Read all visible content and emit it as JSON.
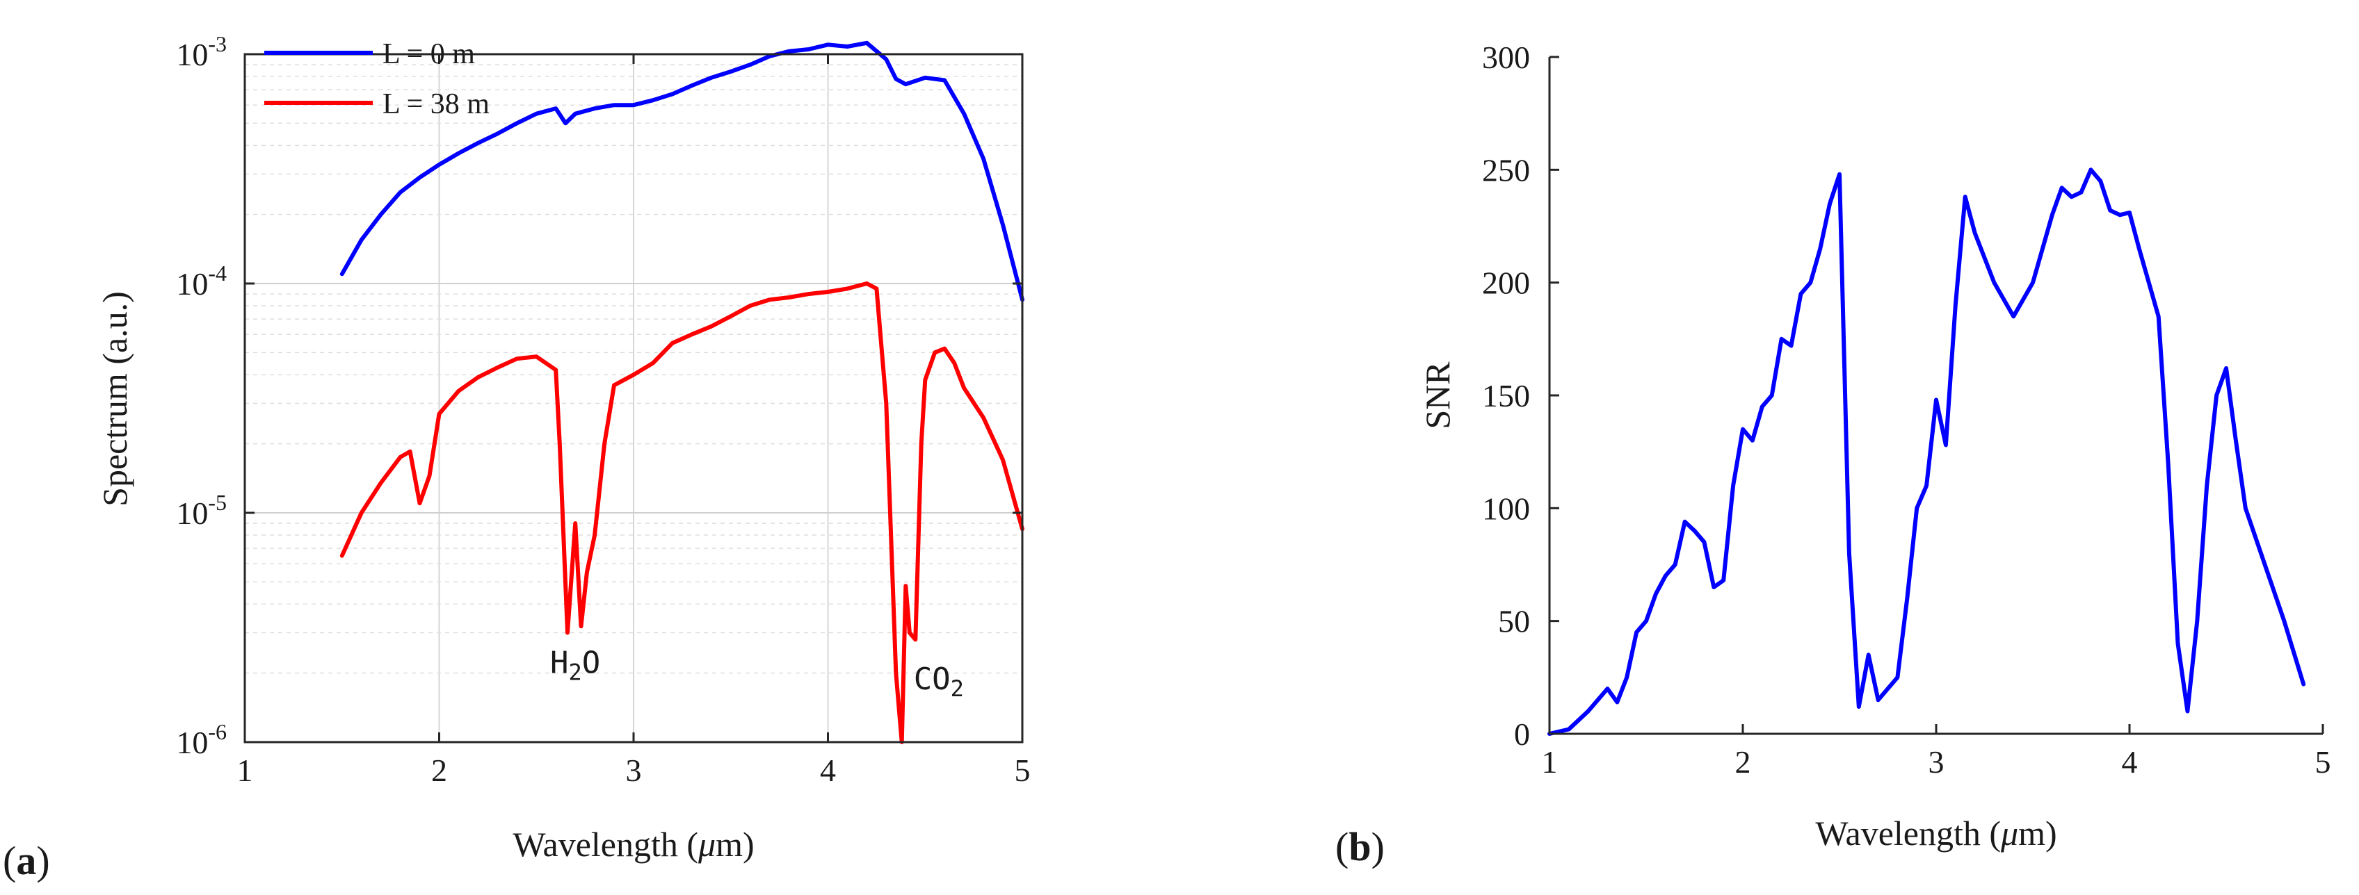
{
  "chart_data": [
    {
      "type": "line",
      "panel_label": "(a)",
      "panel_letter": "a",
      "xlabel": "Wavelength (μm)",
      "xlabel_prefix": "Wavelength (",
      "xlabel_mu": "μ",
      "xlabel_suffix": "m)",
      "ylabel": "Spectrum (a.u.)",
      "yscale": "log",
      "xlim": [
        1,
        5
      ],
      "ylim": [
        1e-06,
        0.001
      ],
      "xticks": [
        "1",
        "2",
        "3",
        "4",
        "5"
      ],
      "yticks": [
        {
          "base": "10",
          "exp": "-6"
        },
        {
          "base": "10",
          "exp": "-5"
        },
        {
          "base": "10",
          "exp": "-4"
        },
        {
          "base": "10",
          "exp": "-3"
        }
      ],
      "grid": true,
      "legend_position": "top-left",
      "series": [
        {
          "name": "L = 0 m",
          "color": "#0000ff",
          "x": [
            1.5,
            1.6,
            1.7,
            1.8,
            1.9,
            2.0,
            2.1,
            2.2,
            2.3,
            2.4,
            2.5,
            2.6,
            2.65,
            2.7,
            2.8,
            2.9,
            3.0,
            3.1,
            3.2,
            3.3,
            3.4,
            3.5,
            3.6,
            3.7,
            3.8,
            3.9,
            4.0,
            4.1,
            4.2,
            4.3,
            4.35,
            4.4,
            4.5,
            4.6,
            4.7,
            4.8,
            4.9,
            5.0
          ],
          "y": [
            0.00011,
            0.000155,
            0.0002,
            0.00025,
            0.00029,
            0.00033,
            0.00037,
            0.00041,
            0.00045,
            0.0005,
            0.00055,
            0.00058,
            0.0005,
            0.00055,
            0.00058,
            0.0006,
            0.0006,
            0.00063,
            0.00067,
            0.00073,
            0.00079,
            0.00084,
            0.0009,
            0.00098,
            0.00103,
            0.00105,
            0.0011,
            0.00108,
            0.00112,
            0.00095,
            0.00078,
            0.00074,
            0.00079,
            0.00077,
            0.00055,
            0.00035,
            0.00018,
            8.5e-05
          ]
        },
        {
          "name": "L = 38 m",
          "color": "#ff0000",
          "x": [
            1.5,
            1.6,
            1.7,
            1.8,
            1.85,
            1.9,
            1.95,
            2.0,
            2.1,
            2.2,
            2.3,
            2.4,
            2.5,
            2.6,
            2.62,
            2.66,
            2.7,
            2.73,
            2.76,
            2.8,
            2.85,
            2.9,
            3.0,
            3.1,
            3.2,
            3.3,
            3.4,
            3.5,
            3.6,
            3.7,
            3.8,
            3.9,
            4.0,
            4.1,
            4.2,
            4.25,
            4.3,
            4.35,
            4.38,
            4.4,
            4.42,
            4.45,
            4.48,
            4.5,
            4.55,
            4.6,
            4.65,
            4.7,
            4.8,
            4.9,
            5.0
          ],
          "y": [
            6.5e-06,
            1e-05,
            1.35e-05,
            1.75e-05,
            1.85e-05,
            1.1e-05,
            1.45e-05,
            2.7e-05,
            3.4e-05,
            3.9e-05,
            4.3e-05,
            4.7e-05,
            4.8e-05,
            4.2e-05,
            2e-05,
            3e-06,
            9e-06,
            3.2e-06,
            5.5e-06,
            8e-06,
            2e-05,
            3.6e-05,
            4e-05,
            4.5e-05,
            5.5e-05,
            6e-05,
            6.5e-05,
            7.2e-05,
            8e-05,
            8.5e-05,
            8.7e-05,
            9e-05,
            9.2e-05,
            9.5e-05,
            0.0001,
            9.5e-05,
            3e-05,
            2e-06,
            1e-06,
            4.8e-06,
            3e-06,
            2.8e-06,
            2e-05,
            3.8e-05,
            5e-05,
            5.2e-05,
            4.5e-05,
            3.5e-05,
            2.6e-05,
            1.7e-05,
            8.5e-06
          ]
        }
      ],
      "annotations": [
        {
          "base": "H",
          "sub": "2",
          "rest": "O",
          "x": 2.7,
          "y": 2e-06
        },
        {
          "base": "CO",
          "sub": "2",
          "rest": "",
          "x": 4.57,
          "y": 1.7e-06
        }
      ]
    },
    {
      "type": "line",
      "panel_label": "(b)",
      "panel_letter": "b",
      "xlabel": "Wavelength (μm)",
      "xlabel_prefix": "Wavelength (",
      "xlabel_mu": "μ",
      "xlabel_suffix": "m)",
      "ylabel": "SNR",
      "yscale": "linear",
      "xlim": [
        1,
        5
      ],
      "ylim": [
        0,
        300
      ],
      "xticks": [
        "1",
        "2",
        "3",
        "4",
        "5"
      ],
      "yticks": [
        "0",
        "50",
        "100",
        "150",
        "200",
        "250",
        "300"
      ],
      "grid": false,
      "series": [
        {
          "name": "SNR",
          "color": "#0000ff",
          "x": [
            1.0,
            1.1,
            1.2,
            1.25,
            1.3,
            1.35,
            1.4,
            1.45,
            1.5,
            1.55,
            1.6,
            1.65,
            1.7,
            1.75,
            1.8,
            1.85,
            1.9,
            1.95,
            2.0,
            2.05,
            2.1,
            2.15,
            2.2,
            2.25,
            2.3,
            2.35,
            2.4,
            2.45,
            2.5,
            2.55,
            2.6,
            2.65,
            2.7,
            2.75,
            2.8,
            2.85,
            2.9,
            2.95,
            3.0,
            3.05,
            3.1,
            3.15,
            3.2,
            3.3,
            3.4,
            3.5,
            3.6,
            3.65,
            3.7,
            3.75,
            3.8,
            3.85,
            3.9,
            3.95,
            4.0,
            4.05,
            4.1,
            4.15,
            4.2,
            4.25,
            4.3,
            4.35,
            4.4,
            4.45,
            4.5,
            4.55,
            4.6,
            4.7,
            4.8,
            4.9
          ],
          "y": [
            0,
            2,
            10,
            15,
            20,
            14,
            25,
            45,
            50,
            62,
            70,
            75,
            94,
            90,
            85,
            65,
            68,
            110,
            135,
            130,
            145,
            150,
            175,
            172,
            195,
            200,
            215,
            235,
            248,
            80,
            12,
            35,
            15,
            20,
            25,
            60,
            100,
            110,
            148,
            128,
            190,
            238,
            222,
            200,
            185,
            200,
            230,
            242,
            238,
            240,
            250,
            245,
            232,
            230,
            231,
            215,
            200,
            185,
            120,
            40,
            10,
            50,
            110,
            150,
            162,
            130,
            100,
            75,
            50,
            22
          ]
        }
      ]
    }
  ]
}
